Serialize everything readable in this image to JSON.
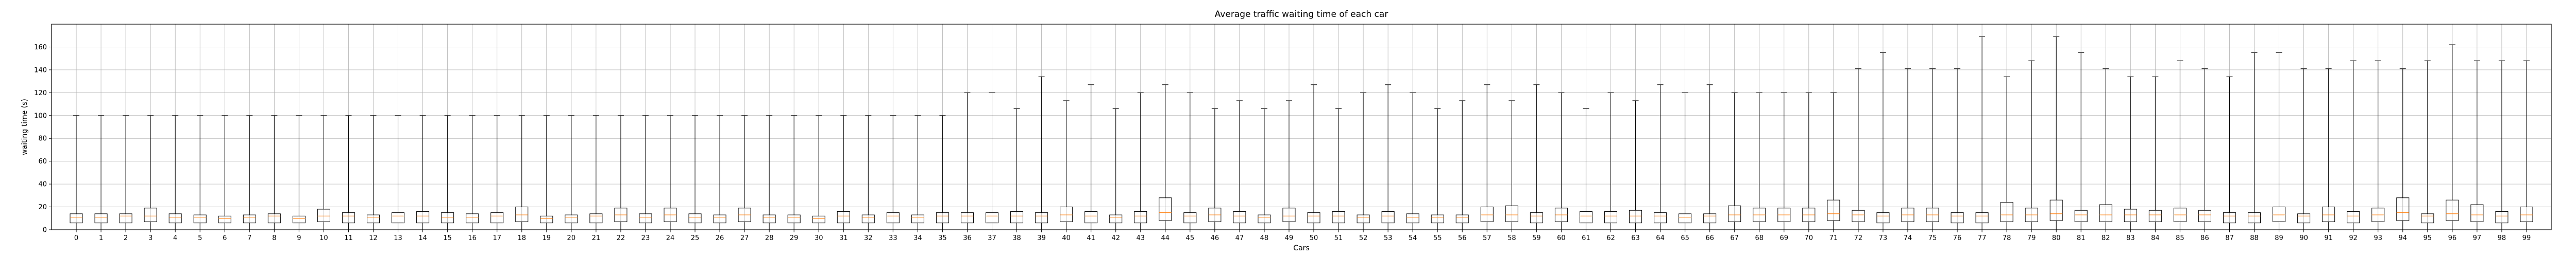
{
  "chart_data": {
    "type": "boxplot",
    "title": "Average traffic waiting time of each car",
    "xlabel": "Cars",
    "ylabel": "waiting time (s)",
    "ylim": [
      0,
      180
    ],
    "yticks": [
      0,
      20,
      40,
      60,
      80,
      100,
      120,
      140,
      160
    ],
    "grid": true,
    "colors": {
      "box": "#000000",
      "median": "#ff7f0e",
      "grid": "#b0b0b0",
      "frame": "#000000"
    },
    "categories": [
      "0",
      "1",
      "2",
      "3",
      "4",
      "5",
      "6",
      "7",
      "8",
      "9",
      "10",
      "11",
      "12",
      "13",
      "14",
      "15",
      "16",
      "17",
      "18",
      "19",
      "20",
      "21",
      "22",
      "23",
      "24",
      "25",
      "26",
      "27",
      "28",
      "29",
      "30",
      "31",
      "32",
      "33",
      "34",
      "35",
      "36",
      "37",
      "38",
      "39",
      "40",
      "41",
      "42",
      "43",
      "44",
      "45",
      "46",
      "47",
      "48",
      "49",
      "50",
      "51",
      "52",
      "53",
      "54",
      "55",
      "56",
      "57",
      "58",
      "59",
      "60",
      "61",
      "62",
      "63",
      "64",
      "65",
      "66",
      "67",
      "68",
      "69",
      "70",
      "71",
      "72",
      "73",
      "74",
      "75",
      "76",
      "77",
      "78",
      "79",
      "80",
      "81",
      "82",
      "83",
      "84",
      "85",
      "86",
      "87",
      "88",
      "89",
      "90",
      "91",
      "92",
      "93",
      "94",
      "95",
      "96",
      "97",
      "98",
      "99"
    ],
    "boxes": [
      {
        "min": 0,
        "q1": 6,
        "median": 11,
        "q3": 14,
        "max": 100
      },
      {
        "min": 0,
        "q1": 6,
        "median": 11,
        "q3": 14,
        "max": 100
      },
      {
        "min": 0,
        "q1": 6,
        "median": 12,
        "q3": 14,
        "max": 100
      },
      {
        "min": 0,
        "q1": 7,
        "median": 12,
        "q3": 19,
        "max": 100
      },
      {
        "min": 0,
        "q1": 6,
        "median": 11,
        "q3": 14,
        "max": 100
      },
      {
        "min": 0,
        "q1": 6,
        "median": 11,
        "q3": 13,
        "max": 100
      },
      {
        "min": 0,
        "q1": 6,
        "median": 10,
        "q3": 12,
        "max": 100
      },
      {
        "min": 0,
        "q1": 6,
        "median": 11,
        "q3": 13,
        "max": 100
      },
      {
        "min": 0,
        "q1": 6,
        "median": 12,
        "q3": 14,
        "max": 100
      },
      {
        "min": 0,
        "q1": 6,
        "median": 10,
        "q3": 12,
        "max": 100
      },
      {
        "min": 0,
        "q1": 7,
        "median": 12,
        "q3": 18,
        "max": 100
      },
      {
        "min": 0,
        "q1": 6,
        "median": 12,
        "q3": 15,
        "max": 100
      },
      {
        "min": 0,
        "q1": 6,
        "median": 11,
        "q3": 13,
        "max": 100
      },
      {
        "min": 0,
        "q1": 6,
        "median": 12,
        "q3": 15,
        "max": 100
      },
      {
        "min": 0,
        "q1": 6,
        "median": 12,
        "q3": 16,
        "max": 100
      },
      {
        "min": 0,
        "q1": 6,
        "median": 11,
        "q3": 15,
        "max": 100
      },
      {
        "min": 0,
        "q1": 6,
        "median": 11,
        "q3": 14,
        "max": 100
      },
      {
        "min": 0,
        "q1": 6,
        "median": 12,
        "q3": 15,
        "max": 100
      },
      {
        "min": 0,
        "q1": 7,
        "median": 13,
        "q3": 20,
        "max": 100
      },
      {
        "min": 0,
        "q1": 6,
        "median": 10,
        "q3": 12,
        "max": 100
      },
      {
        "min": 0,
        "q1": 6,
        "median": 11,
        "q3": 13,
        "max": 100
      },
      {
        "min": 0,
        "q1": 6,
        "median": 12,
        "q3": 14,
        "max": 100
      },
      {
        "min": 0,
        "q1": 7,
        "median": 13,
        "q3": 19,
        "max": 100
      },
      {
        "min": 0,
        "q1": 6,
        "median": 11,
        "q3": 14,
        "max": 100
      },
      {
        "min": 0,
        "q1": 7,
        "median": 13,
        "q3": 19,
        "max": 100
      },
      {
        "min": 0,
        "q1": 6,
        "median": 11,
        "q3": 14,
        "max": 100
      },
      {
        "min": 0,
        "q1": 6,
        "median": 11,
        "q3": 13,
        "max": 100
      },
      {
        "min": 0,
        "q1": 7,
        "median": 13,
        "q3": 19,
        "max": 100
      },
      {
        "min": 0,
        "q1": 6,
        "median": 11,
        "q3": 13,
        "max": 100
      },
      {
        "min": 0,
        "q1": 6,
        "median": 11,
        "q3": 13,
        "max": 100
      },
      {
        "min": 0,
        "q1": 6,
        "median": 10,
        "q3": 12,
        "max": 100
      },
      {
        "min": 0,
        "q1": 6,
        "median": 12,
        "q3": 16,
        "max": 100
      },
      {
        "min": 0,
        "q1": 6,
        "median": 11,
        "q3": 13,
        "max": 100
      },
      {
        "min": 0,
        "q1": 6,
        "median": 12,
        "q3": 15,
        "max": 100
      },
      {
        "min": 0,
        "q1": 6,
        "median": 11,
        "q3": 13,
        "max": 100
      },
      {
        "min": 0,
        "q1": 6,
        "median": 12,
        "q3": 15,
        "max": 100
      },
      {
        "min": 0,
        "q1": 6,
        "median": 12,
        "q3": 15,
        "max": 120
      },
      {
        "min": 0,
        "q1": 6,
        "median": 12,
        "q3": 15,
        "max": 120
      },
      {
        "min": 0,
        "q1": 6,
        "median": 12,
        "q3": 16,
        "max": 106
      },
      {
        "min": 0,
        "q1": 6,
        "median": 12,
        "q3": 15,
        "max": 134
      },
      {
        "min": 0,
        "q1": 7,
        "median": 13,
        "q3": 20,
        "max": 113
      },
      {
        "min": 0,
        "q1": 6,
        "median": 12,
        "q3": 16,
        "max": 127
      },
      {
        "min": 0,
        "q1": 6,
        "median": 11,
        "q3": 13,
        "max": 106
      },
      {
        "min": 0,
        "q1": 6,
        "median": 12,
        "q3": 16,
        "max": 120
      },
      {
        "min": 0,
        "q1": 8,
        "median": 15,
        "q3": 28,
        "max": 127
      },
      {
        "min": 0,
        "q1": 6,
        "median": 12,
        "q3": 15,
        "max": 120
      },
      {
        "min": 0,
        "q1": 7,
        "median": 13,
        "q3": 19,
        "max": 106
      },
      {
        "min": 0,
        "q1": 6,
        "median": 12,
        "q3": 16,
        "max": 113
      },
      {
        "min": 0,
        "q1": 6,
        "median": 11,
        "q3": 13,
        "max": 106
      },
      {
        "min": 0,
        "q1": 7,
        "median": 12,
        "q3": 19,
        "max": 113
      },
      {
        "min": 0,
        "q1": 6,
        "median": 12,
        "q3": 15,
        "max": 127
      },
      {
        "min": 0,
        "q1": 6,
        "median": 12,
        "q3": 16,
        "max": 106
      },
      {
        "min": 0,
        "q1": 6,
        "median": 11,
        "q3": 13,
        "max": 120
      },
      {
        "min": 0,
        "q1": 6,
        "median": 12,
        "q3": 16,
        "max": 127
      },
      {
        "min": 0,
        "q1": 6,
        "median": 11,
        "q3": 14,
        "max": 120
      },
      {
        "min": 0,
        "q1": 6,
        "median": 11,
        "q3": 13,
        "max": 106
      },
      {
        "min": 0,
        "q1": 6,
        "median": 11,
        "q3": 13,
        "max": 113
      },
      {
        "min": 0,
        "q1": 7,
        "median": 13,
        "q3": 20,
        "max": 127
      },
      {
        "min": 0,
        "q1": 7,
        "median": 13,
        "q3": 21,
        "max": 113
      },
      {
        "min": 0,
        "q1": 6,
        "median": 12,
        "q3": 15,
        "max": 127
      },
      {
        "min": 0,
        "q1": 7,
        "median": 13,
        "q3": 19,
        "max": 120
      },
      {
        "min": 0,
        "q1": 6,
        "median": 12,
        "q3": 16,
        "max": 106
      },
      {
        "min": 0,
        "q1": 6,
        "median": 12,
        "q3": 16,
        "max": 120
      },
      {
        "min": 0,
        "q1": 6,
        "median": 12,
        "q3": 17,
        "max": 113
      },
      {
        "min": 0,
        "q1": 6,
        "median": 12,
        "q3": 15,
        "max": 127
      },
      {
        "min": 0,
        "q1": 6,
        "median": 11,
        "q3": 14,
        "max": 120
      },
      {
        "min": 0,
        "q1": 6,
        "median": 12,
        "q3": 14,
        "max": 127
      },
      {
        "min": 0,
        "q1": 7,
        "median": 13,
        "q3": 21,
        "max": 120
      },
      {
        "min": 0,
        "q1": 7,
        "median": 13,
        "q3": 19,
        "max": 120
      },
      {
        "min": 0,
        "q1": 7,
        "median": 13,
        "q3": 19,
        "max": 120
      },
      {
        "min": 0,
        "q1": 7,
        "median": 13,
        "q3": 19,
        "max": 120
      },
      {
        "min": 0,
        "q1": 8,
        "median": 14,
        "q3": 26,
        "max": 120
      },
      {
        "min": 0,
        "q1": 7,
        "median": 13,
        "q3": 17,
        "max": 141
      },
      {
        "min": 0,
        "q1": 6,
        "median": 12,
        "q3": 15,
        "max": 155
      },
      {
        "min": 0,
        "q1": 7,
        "median": 13,
        "q3": 19,
        "max": 141
      },
      {
        "min": 0,
        "q1": 7,
        "median": 13,
        "q3": 19,
        "max": 141
      },
      {
        "min": 0,
        "q1": 6,
        "median": 12,
        "q3": 15,
        "max": 141
      },
      {
        "min": 0,
        "q1": 6,
        "median": 12,
        "q3": 15,
        "max": 169
      },
      {
        "min": 0,
        "q1": 7,
        "median": 13,
        "q3": 24,
        "max": 134
      },
      {
        "min": 0,
        "q1": 7,
        "median": 13,
        "q3": 19,
        "max": 148
      },
      {
        "min": 0,
        "q1": 8,
        "median": 14,
        "q3": 26,
        "max": 169
      },
      {
        "min": 0,
        "q1": 7,
        "median": 13,
        "q3": 17,
        "max": 155
      },
      {
        "min": 0,
        "q1": 7,
        "median": 13,
        "q3": 22,
        "max": 141
      },
      {
        "min": 0,
        "q1": 7,
        "median": 13,
        "q3": 18,
        "max": 134
      },
      {
        "min": 0,
        "q1": 7,
        "median": 13,
        "q3": 17,
        "max": 134
      },
      {
        "min": 0,
        "q1": 7,
        "median": 13,
        "q3": 19,
        "max": 148
      },
      {
        "min": 0,
        "q1": 7,
        "median": 13,
        "q3": 17,
        "max": 141
      },
      {
        "min": 0,
        "q1": 6,
        "median": 12,
        "q3": 15,
        "max": 134
      },
      {
        "min": 0,
        "q1": 6,
        "median": 12,
        "q3": 15,
        "max": 155
      },
      {
        "min": 0,
        "q1": 7,
        "median": 13,
        "q3": 20,
        "max": 155
      },
      {
        "min": 0,
        "q1": 6,
        "median": 12,
        "q3": 14,
        "max": 141
      },
      {
        "min": 0,
        "q1": 7,
        "median": 13,
        "q3": 20,
        "max": 141
      },
      {
        "min": 0,
        "q1": 6,
        "median": 12,
        "q3": 16,
        "max": 148
      },
      {
        "min": 0,
        "q1": 7,
        "median": 13,
        "q3": 19,
        "max": 148
      },
      {
        "min": 0,
        "q1": 8,
        "median": 15,
        "q3": 28,
        "max": 141
      },
      {
        "min": 0,
        "q1": 6,
        "median": 12,
        "q3": 14,
        "max": 148
      },
      {
        "min": 0,
        "q1": 8,
        "median": 14,
        "q3": 26,
        "max": 162
      },
      {
        "min": 0,
        "q1": 7,
        "median": 13,
        "q3": 22,
        "max": 148
      },
      {
        "min": 0,
        "q1": 6,
        "median": 12,
        "q3": 16,
        "max": 148
      },
      {
        "min": 0,
        "q1": 7,
        "median": 13,
        "q3": 20,
        "max": 148
      }
    ]
  }
}
